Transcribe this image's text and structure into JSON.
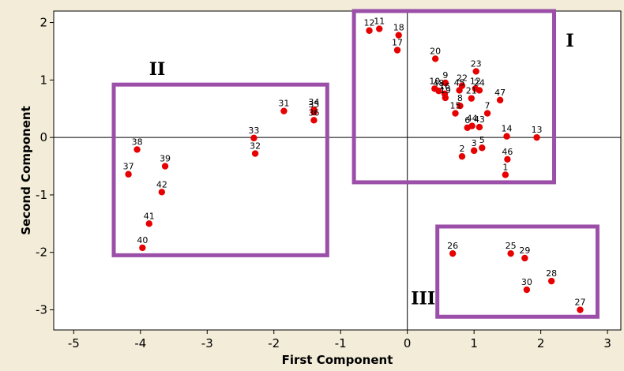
{
  "chart_data": {
    "type": "scatter",
    "title": "",
    "xlabel": "First Component",
    "ylabel": "Second Component",
    "xlim": [
      -5.3,
      3.2
    ],
    "ylim": [
      -3.35,
      2.2
    ],
    "xticks": [
      -5,
      -4,
      -3,
      -2,
      -1,
      0,
      1,
      2,
      3
    ],
    "yticks": [
      -3,
      -2,
      -1,
      0,
      1,
      2
    ],
    "grid": false,
    "reference_lines": {
      "x": 0,
      "y": 0
    },
    "marker_color": "#e60000",
    "region_color": "#9b4fa8",
    "points": [
      {
        "label": "1",
        "x": 1.47,
        "y": -0.65
      },
      {
        "label": "2",
        "x": 0.82,
        "y": -0.33
      },
      {
        "label": "3",
        "x": 1.0,
        "y": -0.23
      },
      {
        "label": "5",
        "x": 1.12,
        "y": -0.18
      },
      {
        "label": "46",
        "x": 1.5,
        "y": -0.38
      },
      {
        "label": "14",
        "x": 1.49,
        "y": 0.02
      },
      {
        "label": "13",
        "x": 1.94,
        "y": 0.0
      },
      {
        "label": "6",
        "x": 0.9,
        "y": 0.17
      },
      {
        "label": "44",
        "x": 0.97,
        "y": 0.2
      },
      {
        "label": "43",
        "x": 1.08,
        "y": 0.18
      },
      {
        "label": "7",
        "x": 1.2,
        "y": 0.42
      },
      {
        "label": "47",
        "x": 1.39,
        "y": 0.65
      },
      {
        "label": "15",
        "x": 0.72,
        "y": 0.42
      },
      {
        "label": "8",
        "x": 0.79,
        "y": 0.55
      },
      {
        "label": "21",
        "x": 0.96,
        "y": 0.68
      },
      {
        "label": "12",
        "x": 1.02,
        "y": 0.85
      },
      {
        "label": "24",
        "x": 1.08,
        "y": 0.82
      },
      {
        "label": "22",
        "x": 0.82,
        "y": 0.9
      },
      {
        "label": "45",
        "x": 0.78,
        "y": 0.82
      },
      {
        "label": "23",
        "x": 1.03,
        "y": 1.15
      },
      {
        "label": "9",
        "x": 0.57,
        "y": 0.95
      },
      {
        "label": "10",
        "x": 0.41,
        "y": 0.85
      },
      {
        "label": "48",
        "x": 0.47,
        "y": 0.81
      },
      {
        "label": "16",
        "x": 0.56,
        "y": 0.76
      },
      {
        "label": "19",
        "x": 0.57,
        "y": 0.69
      },
      {
        "label": "20",
        "x": 0.42,
        "y": 1.37
      },
      {
        "label": "17",
        "x": -0.15,
        "y": 1.52
      },
      {
        "label": "18",
        "x": -0.13,
        "y": 1.78
      },
      {
        "label": "11",
        "x": -0.42,
        "y": 1.89
      },
      {
        "label": "12",
        "x": -0.57,
        "y": 1.86
      },
      {
        "label": "31",
        "x": -1.85,
        "y": 0.46
      },
      {
        "label": "34",
        "x": -1.4,
        "y": 0.48
      },
      {
        "label": "35",
        "x": -1.4,
        "y": 0.44
      },
      {
        "label": "36",
        "x": -1.4,
        "y": 0.3
      },
      {
        "label": "33",
        "x": -2.3,
        "y": -0.01
      },
      {
        "label": "32",
        "x": -2.28,
        "y": -0.28
      },
      {
        "label": "38",
        "x": -4.05,
        "y": -0.21
      },
      {
        "label": "39",
        "x": -3.63,
        "y": -0.5
      },
      {
        "label": "37",
        "x": -4.18,
        "y": -0.64
      },
      {
        "label": "42",
        "x": -3.68,
        "y": -0.95
      },
      {
        "label": "41",
        "x": -3.87,
        "y": -1.5
      },
      {
        "label": "40",
        "x": -3.97,
        "y": -1.92
      },
      {
        "label": "26",
        "x": 0.68,
        "y": -2.02
      },
      {
        "label": "25",
        "x": 1.55,
        "y": -2.02
      },
      {
        "label": "29",
        "x": 1.76,
        "y": -2.1
      },
      {
        "label": "28",
        "x": 2.16,
        "y": -2.5
      },
      {
        "label": "30",
        "x": 1.79,
        "y": -2.65
      },
      {
        "label": "27",
        "x": 2.59,
        "y": -3.0
      }
    ],
    "regions": [
      {
        "label": "I",
        "x0": -0.8,
        "x1": 2.2,
        "y0": -0.78,
        "y1": 2.2
      },
      {
        "label": "II",
        "x0": -4.4,
        "x1": -1.2,
        "y0": -2.05,
        "y1": 0.92
      },
      {
        "label": "III",
        "x0": 0.45,
        "x1": 2.85,
        "y0": -3.12,
        "y1": -1.55
      }
    ]
  }
}
